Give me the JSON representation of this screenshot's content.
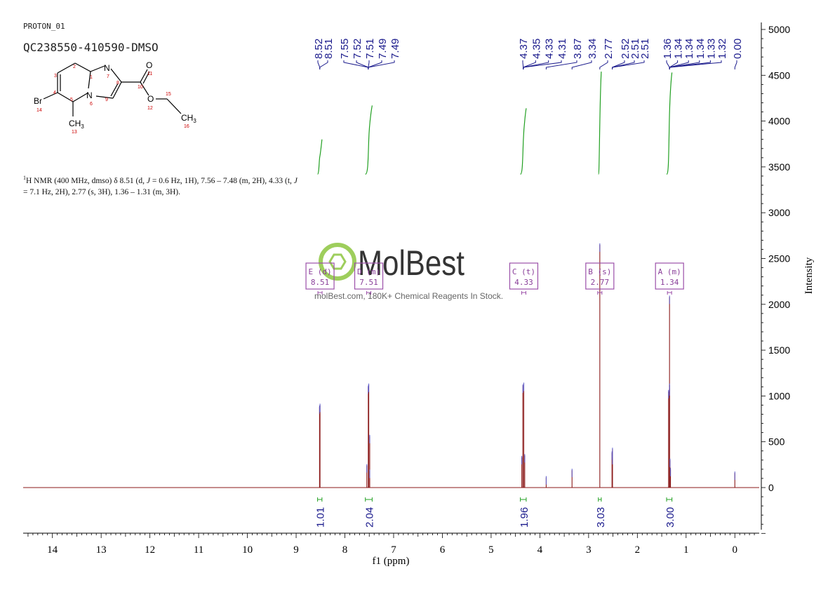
{
  "header": {
    "experiment": "PROTON_01",
    "sample": "QC238550-410590-DMSO"
  },
  "structure": {
    "atoms": {
      "br": "Br",
      "br_num": "14",
      "n7": "N",
      "n7_num": "7",
      "n6": "N",
      "n6_num": "6",
      "o11": "O",
      "o11_num": "11",
      "o12": "O",
      "o12_num": "12",
      "ch3_13": "CH",
      "ch3_13_sub": "3",
      "c13_num": "13",
      "ch3_16": "CH",
      "ch3_16_sub": "3",
      "c16_num": "16",
      "n1": "1",
      "n2": "2",
      "n3": "3",
      "n4": "4",
      "n5": "5",
      "n8": "8",
      "n9": "9",
      "n10": "10",
      "n15": "15"
    }
  },
  "description": {
    "sup": "1",
    "text1": "H NMR (400 MHz, dmso) δ 8.51 (d, ",
    "j1": "J",
    "text2": " = 0.6 Hz, 1H), 7.56 – 7.48 (m, 2H), 4.33 (t, ",
    "j2": "J",
    "text3": " = 7.1 Hz, 2H), 2.77 (s, 3H), 1.36 – 1.31 (m, 3H)."
  },
  "watermark": {
    "brand": "MolBest",
    "tagline": "molBest.com, 180K+ Chemical Reagents In Stock."
  },
  "chart_data": {
    "type": "line",
    "xlabel": "f1 (ppm)",
    "ylabel": "Intensity",
    "xlim": [
      14.6,
      -0.5
    ],
    "ylim": [
      -500,
      5000
    ],
    "x_ticks": [
      14,
      13,
      12,
      11,
      10,
      9,
      8,
      7,
      6,
      5,
      4,
      3,
      2,
      1,
      0
    ],
    "y_ticks": [
      0,
      500,
      1000,
      1500,
      2000,
      2500,
      3000,
      3500,
      4000,
      4500,
      5000
    ],
    "peaks": [
      {
        "ppm": 8.52,
        "height": 880
      },
      {
        "ppm": 8.51,
        "height": 900
      },
      {
        "ppm": 7.55,
        "height": 240
      },
      {
        "ppm": 7.52,
        "height": 1100
      },
      {
        "ppm": 7.51,
        "height": 1120
      },
      {
        "ppm": 7.49,
        "height": 560
      },
      {
        "ppm": 7.49,
        "height": 180
      },
      {
        "ppm": 4.37,
        "height": 330
      },
      {
        "ppm": 4.35,
        "height": 1110
      },
      {
        "ppm": 4.33,
        "height": 1130
      },
      {
        "ppm": 4.31,
        "height": 350
      },
      {
        "ppm": 3.87,
        "height": 110
      },
      {
        "ppm": 3.34,
        "height": 190
      },
      {
        "ppm": 2.77,
        "height": 2650
      },
      {
        "ppm": 2.52,
        "height": 380
      },
      {
        "ppm": 2.51,
        "height": 420
      },
      {
        "ppm": 2.51,
        "height": 330
      },
      {
        "ppm": 1.36,
        "height": 1050
      },
      {
        "ppm": 1.34,
        "height": 2080
      },
      {
        "ppm": 1.34,
        "height": 1120
      },
      {
        "ppm": 1.34,
        "height": 1080
      },
      {
        "ppm": 1.33,
        "height": 300
      },
      {
        "ppm": 1.32,
        "height": 200
      },
      {
        "ppm": 0.0,
        "height": 160
      }
    ],
    "peak_labels": [
      "8.52",
      "8.51",
      "7.55",
      "7.52",
      "7.51",
      "7.49",
      "7.49",
      "4.37",
      "4.35",
      "4.33",
      "4.31",
      "3.87",
      "3.34",
      "2.77",
      "2.52",
      "2.51",
      "2.51",
      "1.36",
      "1.34",
      "1.34",
      "1.34",
      "1.33",
      "1.32",
      "0.00"
    ],
    "peak_label_groups": [
      {
        "labels": [
          "8.52",
          "8.51"
        ],
        "ppm_range": [
          8.52,
          8.51
        ]
      },
      {
        "labels": [
          "7.55",
          "7.52",
          "7.51",
          "7.49",
          "7.49"
        ],
        "ppm_range": [
          7.55,
          7.49
        ]
      },
      {
        "labels": [
          "4.37",
          "4.35",
          "4.33",
          "4.31"
        ],
        "ppm_range": [
          4.37,
          4.31
        ]
      },
      {
        "labels": [
          "3.87"
        ],
        "ppm_range": [
          3.87,
          3.87
        ]
      },
      {
        "labels": [
          "3.34"
        ],
        "ppm_range": [
          3.34,
          3.34
        ]
      },
      {
        "labels": [
          "2.77"
        ],
        "ppm_range": [
          2.77,
          2.77
        ]
      },
      {
        "labels": [
          "2.52",
          "2.51",
          "2.51"
        ],
        "ppm_range": [
          2.52,
          2.51
        ]
      },
      {
        "labels": [
          "1.36",
          "1.34",
          "1.34",
          "1.34",
          "1.33",
          "1.32"
        ],
        "ppm_range": [
          1.36,
          1.32
        ]
      },
      {
        "labels": [
          "0.00"
        ],
        "ppm_range": [
          0.0,
          0.0
        ]
      }
    ],
    "integrals": [
      {
        "from": 8.56,
        "to": 8.47,
        "value": "1.01",
        "curve": [
          3420,
          3800
        ]
      },
      {
        "from": 7.58,
        "to": 7.44,
        "value": "2.04",
        "curve": [
          3420,
          4170
        ]
      },
      {
        "from": 4.4,
        "to": 4.28,
        "value": "1.96",
        "curve": [
          3420,
          4140
        ]
      },
      {
        "from": 2.8,
        "to": 2.74,
        "value": "3.03",
        "curve": [
          3420,
          4540
        ]
      },
      {
        "from": 1.4,
        "to": 1.29,
        "value": "3.00",
        "curve": [
          3420,
          4530
        ]
      }
    ],
    "multiplets": [
      {
        "label": "E (d)",
        "value": "8.51",
        "ppm": 8.51
      },
      {
        "label": "D (m)",
        "value": "7.51",
        "ppm": 7.51
      },
      {
        "label": "C (t)",
        "value": "4.33",
        "ppm": 4.33
      },
      {
        "label": "B (s)",
        "value": "2.77",
        "ppm": 2.77
      },
      {
        "label": "A (m)",
        "value": "1.34",
        "ppm": 1.34
      }
    ]
  }
}
